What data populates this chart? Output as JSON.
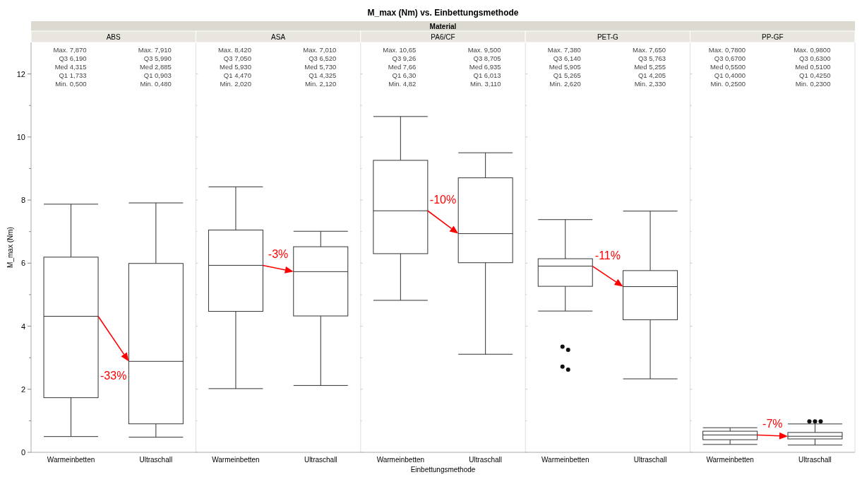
{
  "chart_data": [
    {
      "type": "other",
      "title": "M_max (Nm) vs. Einbettungsmethode",
      "subtitle": "Material"
    },
    {
      "type": "box",
      "title": "ABS",
      "ylabel": "M_max (Nm)",
      "categories": [
        "Warmeinbetten",
        "Ultraschall"
      ],
      "ylim": [
        0,
        13
      ],
      "yticks": [
        0,
        {
          "value": 1,
          "label": null
        },
        2,
        {
          "value": 3,
          "label": null
        },
        4,
        {
          "value": 5,
          "label": null
        },
        6,
        {
          "value": 7,
          "label": null
        },
        8,
        {
          "value": 9,
          "label": null
        },
        10,
        {
          "value": 11,
          "label": null
        },
        12
      ],
      "boxes": [
        {
          "low": 0.5,
          "q1": 1.733,
          "median": 4.315,
          "q3": 6.19,
          "high": 7.87
        },
        {
          "low": 0.48,
          "q1": 0.903,
          "median": 2.885,
          "q3": 5.99,
          "high": 7.91
        }
      ],
      "annotations": [
        "Max. 7,870\nQ3 6,190\nMed 4,315\nQ1 1,733\nMin. 0,500",
        "Max. 7,910\nQ3 5,990\nMed 2,885\nQ1 0,903\nMin. 0,480",
        "-33%"
      ]
    },
    {
      "type": "box",
      "title": "ASA",
      "categories": [
        "Warmeinbetten",
        "Ultraschall"
      ],
      "ylim": [
        0,
        13
      ],
      "yticks": [
        0,
        {
          "value": 1,
          "label": null
        },
        2,
        {
          "value": 3,
          "label": null
        },
        4,
        {
          "value": 5,
          "label": null
        },
        6,
        {
          "value": 7,
          "label": null
        },
        8,
        {
          "value": 9,
          "label": null
        },
        10,
        {
          "value": 11,
          "label": null
        },
        12
      ],
      "tick_labels": "x",
      "boxes": [
        {
          "low": 2.02,
          "q1": 4.47,
          "median": 5.93,
          "q3": 7.05,
          "high": 8.42
        },
        {
          "low": 2.12,
          "q1": 4.325,
          "median": 5.73,
          "q3": 6.52,
          "high": 7.01
        }
      ],
      "annotations": [
        "Max. 8,420\nQ3 7,050\nMed 5,930\nQ1 4,470\nMin. 2,020",
        "Max. 7,010\nQ3 6,520\nMed 5,730\nQ1 4,325\nMin. 2,120",
        "-3%"
      ]
    },
    {
      "type": "box",
      "title": "PA6/CF",
      "xlabel": "Einbettungsmethode",
      "categories": [
        "Warmeinbetten",
        "Ultraschall"
      ],
      "ylim": [
        0,
        13
      ],
      "yticks": [
        0,
        {
          "value": 1,
          "label": null
        },
        2,
        {
          "value": 3,
          "label": null
        },
        4,
        {
          "value": 5,
          "label": null
        },
        6,
        {
          "value": 7,
          "label": null
        },
        8,
        {
          "value": 9,
          "label": null
        },
        10,
        {
          "value": 11,
          "label": null
        },
        12
      ],
      "tick_labels": "x",
      "boxes": [
        {
          "low": 4.82,
          "q1": 6.3,
          "median": 7.66,
          "q3": 9.26,
          "high": 10.65
        },
        {
          "low": 3.11,
          "q1": 6.013,
          "median": 6.935,
          "q3": 8.705,
          "high": 9.5
        }
      ],
      "annotations": [
        "Max. 10,65\nQ3 9,26\nMed 7,66\nQ1 6,30\nMin. 4,82",
        "Max. 9,500\nQ3 8,705\nMed 6,935\nQ1 6,013\nMin. 3,110",
        "-10%"
      ]
    },
    {
      "type": "box",
      "title": "PET-G",
      "categories": [
        "Warmeinbetten",
        "Ultraschall"
      ],
      "ylim": [
        0,
        13
      ],
      "yticks": [
        0,
        {
          "value": 1,
          "label": null
        },
        2,
        {
          "value": 3,
          "label": null
        },
        4,
        {
          "value": 5,
          "label": null
        },
        6,
        {
          "value": 7,
          "label": null
        },
        8,
        {
          "value": 9,
          "label": null
        },
        10,
        {
          "value": 11,
          "label": null
        },
        12
      ],
      "tick_labels": "x",
      "boxes": [
        {
          "low": 4.48,
          "q1": 5.265,
          "median": 5.905,
          "q3": 6.14,
          "high": 7.38,
          "outliers": [
            3.35,
            3.25,
            2.72,
            2.62
          ]
        },
        {
          "low": 2.33,
          "q1": 4.205,
          "median": 5.255,
          "q3": 5.763,
          "high": 7.65
        }
      ],
      "annotations": [
        "Max. 7,380\nQ3 6,140\nMed 5,905\nQ1 5,265\nMin. 2,620",
        "Max. 7,650\nQ3 5,763\nMed 5,255\nQ1 4,205\nMin. 2,330",
        "-11%"
      ]
    },
    {
      "type": "box",
      "title": "PP-GF",
      "categories": [
        "Warmeinbetten",
        "Ultraschall"
      ],
      "ylim": [
        0,
        13
      ],
      "yticks": [
        0,
        {
          "value": 1,
          "label": null
        },
        2,
        {
          "value": 3,
          "label": null
        },
        4,
        {
          "value": 5,
          "label": null
        },
        6,
        {
          "value": 7,
          "label": null
        },
        8,
        {
          "value": 9,
          "label": null
        },
        10,
        {
          "value": 11,
          "label": null
        },
        12
      ],
      "tick_labels": "x",
      "boxes": [
        {
          "low": 0.25,
          "q1": 0.4,
          "median": 0.55,
          "q3": 0.67,
          "high": 0.78
        },
        {
          "low": 0.23,
          "q1": 0.425,
          "median": 0.51,
          "q3": 0.63,
          "high": 0.9,
          "outliers": [
            0.98,
            0.98,
            0.98
          ]
        }
      ],
      "annotations": [
        "Max. 0,7800\nQ3 0,6700\nMed 0,5500\nQ1 0,4000\nMin. 0,2500",
        "Max. 0,9800\nQ3 0,6300\nMed 0,5100\nQ1 0,4250\nMin. 0,2300",
        "-7%"
      ]
    }
  ]
}
